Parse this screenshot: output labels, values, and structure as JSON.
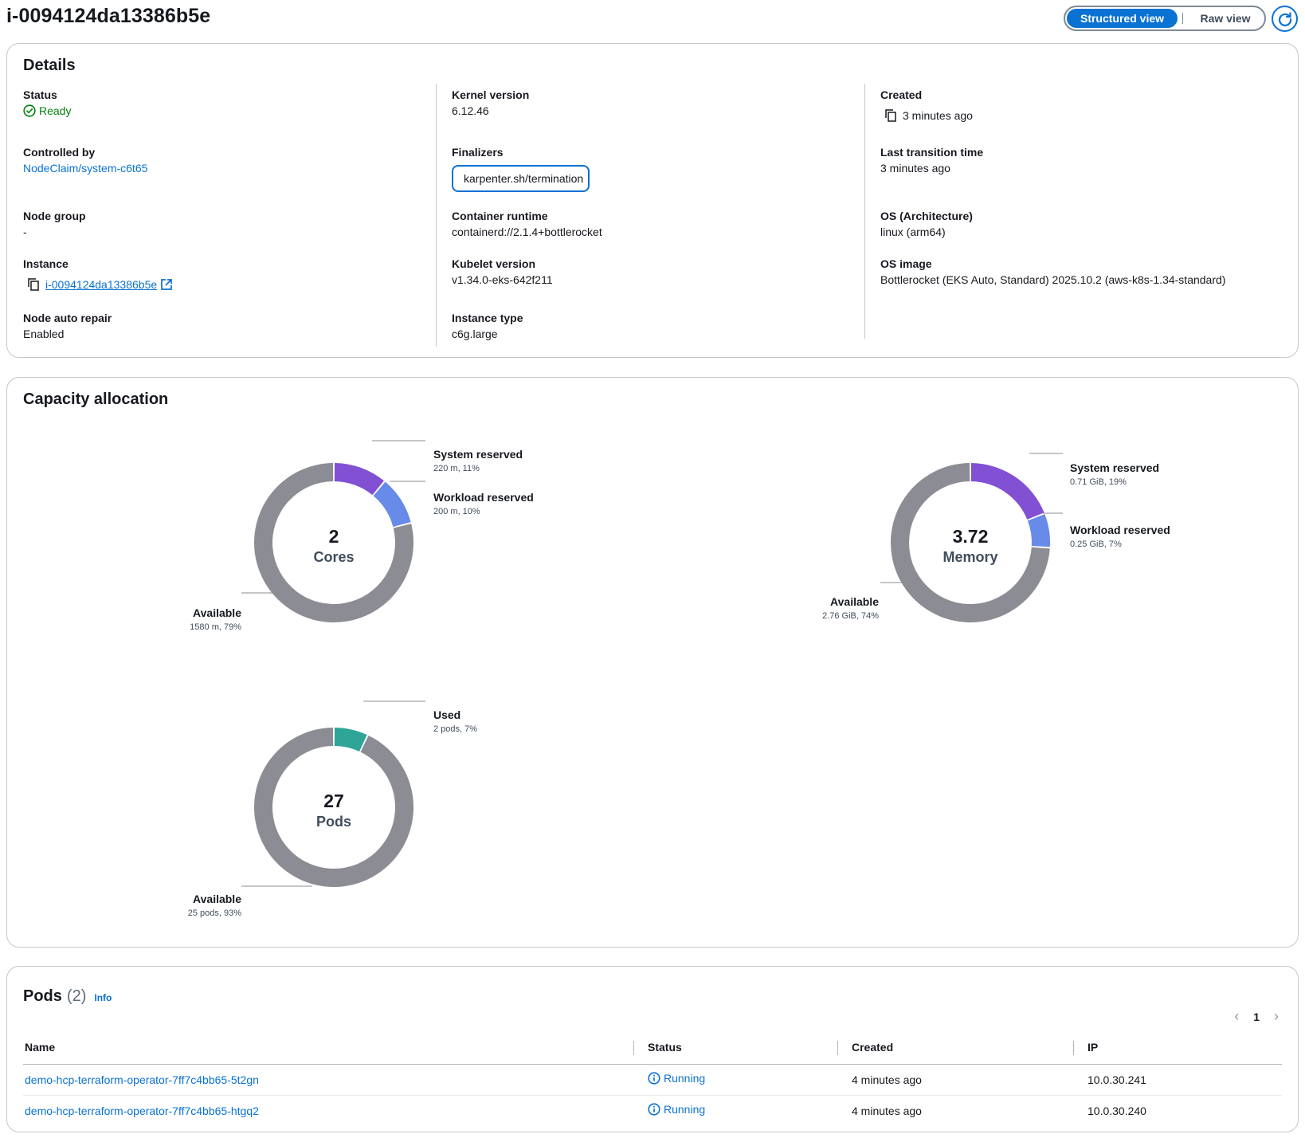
{
  "page": {
    "title": "i-0094124da13386b5e",
    "view_toggle": {
      "structured": "Structured view",
      "raw": "Raw view",
      "selected": "Structured view"
    },
    "refresh_icon": "refresh-icon"
  },
  "details": {
    "title": "Details",
    "status": {
      "label": "Status",
      "value": "Ready",
      "color": "#037f0c",
      "icon": "status-success-icon"
    },
    "controlled_by": {
      "label": "Controlled by",
      "value": "NodeClaim/system-c6t65"
    },
    "node_group": {
      "label": "Node group",
      "value": "-"
    },
    "instance": {
      "label": "Instance",
      "value": "i-0094124da13386b5e",
      "icon": "external-link-icon"
    },
    "node_auto_repair": {
      "label": "Node auto repair",
      "value": "Enabled"
    },
    "kernel_version": {
      "label": "Kernel version",
      "value": "6.12.46"
    },
    "finalizers": {
      "label": "Finalizers",
      "value": "karpenter.sh/termination"
    },
    "container_runtime": {
      "label": "Container runtime",
      "value": "containerd://2.1.4+bottlerocket"
    },
    "kubelet_version": {
      "label": "Kubelet version",
      "value": "v1.34.0-eks-642f211"
    },
    "instance_type": {
      "label": "Instance type",
      "value": "c6g.large"
    },
    "created": {
      "label": "Created",
      "value": "3 minutes ago"
    },
    "last_transition": {
      "label": "Last transition time",
      "value": "3 minutes ago"
    },
    "os_arch": {
      "label": "OS (Architecture)",
      "value": "linux (arm64)"
    },
    "os_image": {
      "label": "OS image",
      "value": "Bottlerocket (EKS Auto, Standard) 2025.10.2 (aws-k8s-1.34-standard)"
    }
  },
  "capacity": {
    "title": "Capacity allocation",
    "colors": {
      "system": "#8150d3",
      "workload": "#688ae8",
      "available": "#8c8c94",
      "used": "#2ea597"
    }
  },
  "chart_data": [
    {
      "type": "pie",
      "center_value": "2",
      "center_label": "Cores",
      "slices": [
        {
          "name": "System reserved",
          "detail": "220 m, 11%",
          "value": 11
        },
        {
          "name": "Workload reserved",
          "detail": "200 m, 10%",
          "value": 10
        },
        {
          "name": "Available",
          "detail": "1580 m, 79%",
          "value": 79
        }
      ]
    },
    {
      "type": "pie",
      "center_value": "3.72",
      "center_label": "Memory",
      "slices": [
        {
          "name": "System reserved",
          "detail": "0.71 GiB, 19%",
          "value": 19
        },
        {
          "name": "Workload reserved",
          "detail": "0.25 GiB, 7%",
          "value": 7
        },
        {
          "name": "Available",
          "detail": "2.76 GiB, 74%",
          "value": 74
        }
      ]
    },
    {
      "type": "pie",
      "center_value": "27",
      "center_label": "Pods",
      "slices": [
        {
          "name": "Used",
          "detail": "2 pods, 7%",
          "value": 7
        },
        {
          "name": "Available",
          "detail": "25 pods, 93%",
          "value": 93
        }
      ]
    }
  ],
  "pods": {
    "title": "Pods",
    "count": "(2)",
    "info": "Info",
    "page": "1",
    "columns": [
      "Name",
      "Status",
      "Created",
      "IP"
    ],
    "rows": [
      {
        "name": "demo-hcp-terraform-operator-7ff7c4bb65-5t2gn",
        "status": "Running",
        "created": "4 minutes ago",
        "ip": "10.0.30.241"
      },
      {
        "name": "demo-hcp-terraform-operator-7ff7c4bb65-htgq2",
        "status": "Running",
        "created": "4 minutes ago",
        "ip": "10.0.30.240"
      }
    ]
  }
}
